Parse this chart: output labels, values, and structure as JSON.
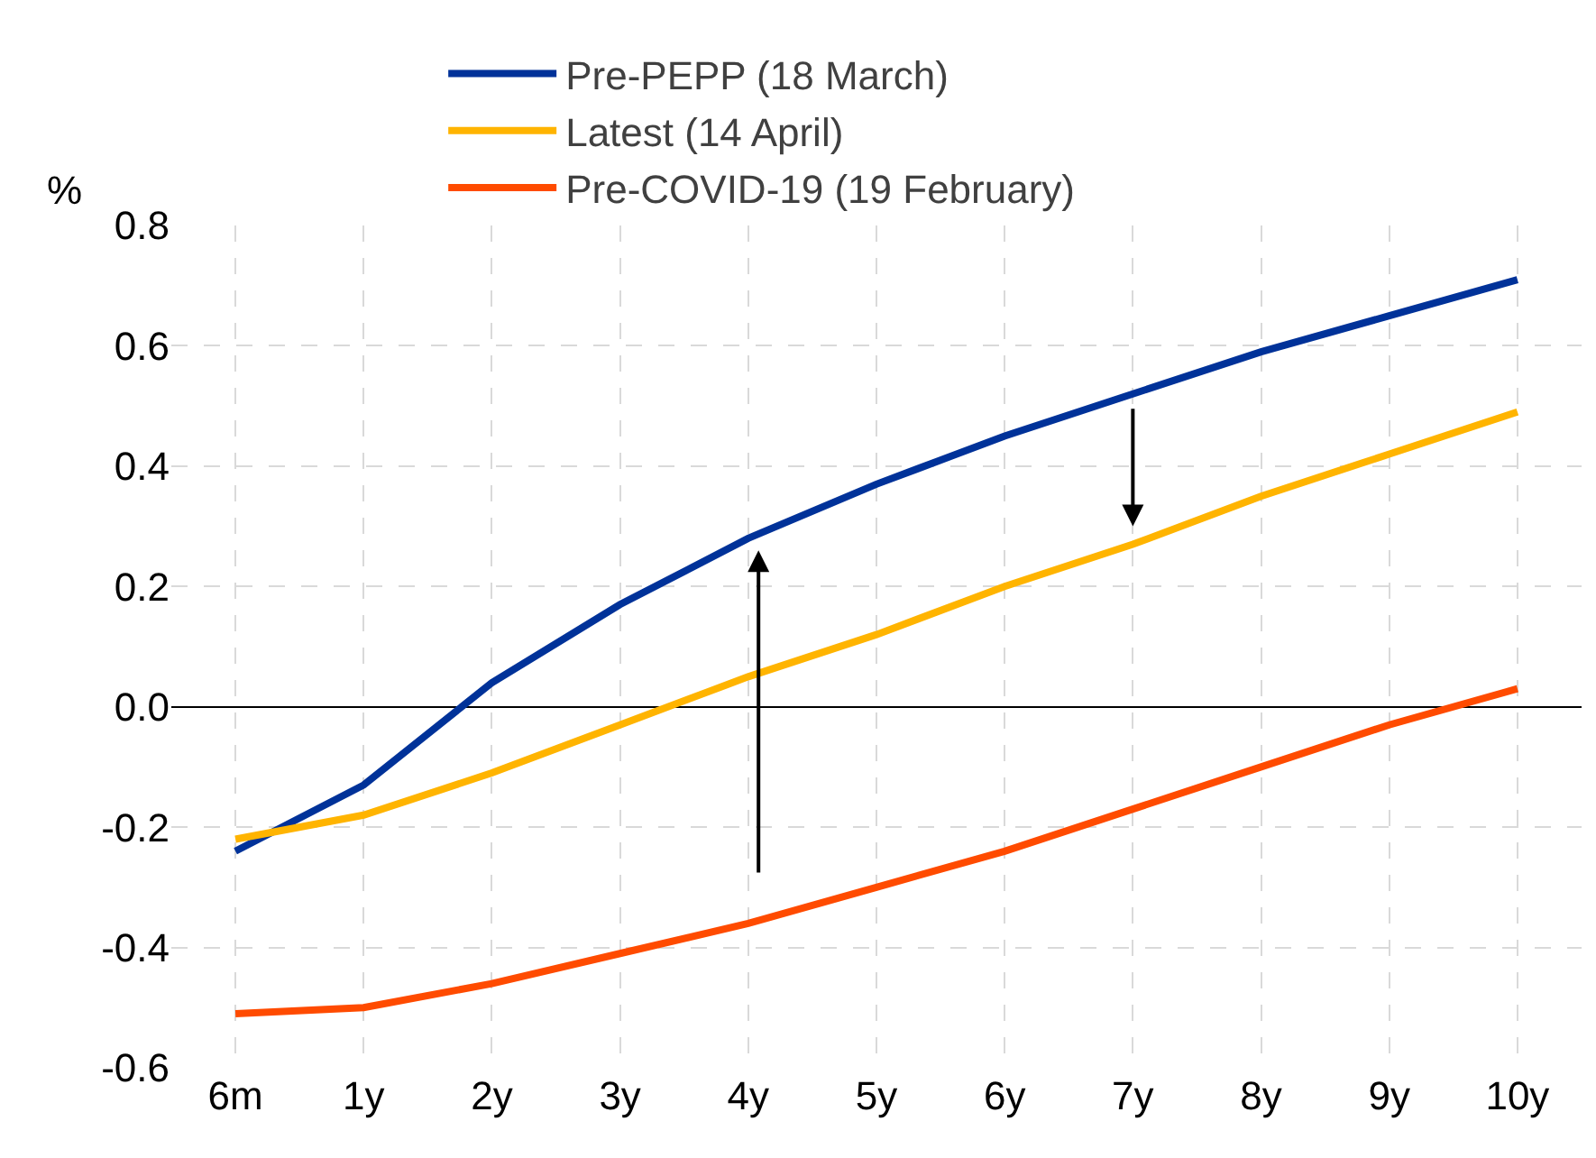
{
  "chart_data": {
    "type": "line",
    "ylabel": "%",
    "categories": [
      "6m",
      "1y",
      "2y",
      "3y",
      "4y",
      "5y",
      "6y",
      "7y",
      "8y",
      "9y",
      "10y"
    ],
    "series": [
      {
        "name": "Pre-PEPP (18 March)",
        "color": "#003299",
        "values": [
          -0.24,
          -0.13,
          0.04,
          0.17,
          0.28,
          0.37,
          0.45,
          0.52,
          0.59,
          0.65,
          0.71
        ]
      },
      {
        "name": "Latest (14 April)",
        "color": "#ffb400",
        "values": [
          -0.22,
          -0.18,
          -0.11,
          -0.03,
          0.05,
          0.12,
          0.2,
          0.27,
          0.35,
          0.42,
          0.49
        ]
      },
      {
        "name": "Pre-COVID-19 (19 February)",
        "color": "#ff4b00",
        "values": [
          -0.51,
          -0.5,
          -0.46,
          -0.41,
          -0.36,
          -0.3,
          -0.24,
          -0.17,
          -0.1,
          -0.03,
          0.03
        ]
      }
    ],
    "ylim": [
      -0.6,
      0.8
    ],
    "yticks": [
      {
        "value": -0.6,
        "label": "-0.6"
      },
      {
        "value": -0.4,
        "label": "-0.4"
      },
      {
        "value": -0.2,
        "label": "-0.2"
      },
      {
        "value": 0,
        "label": "0.0"
      },
      {
        "value": 0.2,
        "label": "0.2"
      },
      {
        "value": 0.4,
        "label": "0.4"
      },
      {
        "value": 0.6,
        "label": "0.6"
      },
      {
        "value": 0.8,
        "label": "0.8"
      }
    ],
    "grid": true,
    "legend": "top",
    "marker": "none",
    "line_style": "solid"
  }
}
